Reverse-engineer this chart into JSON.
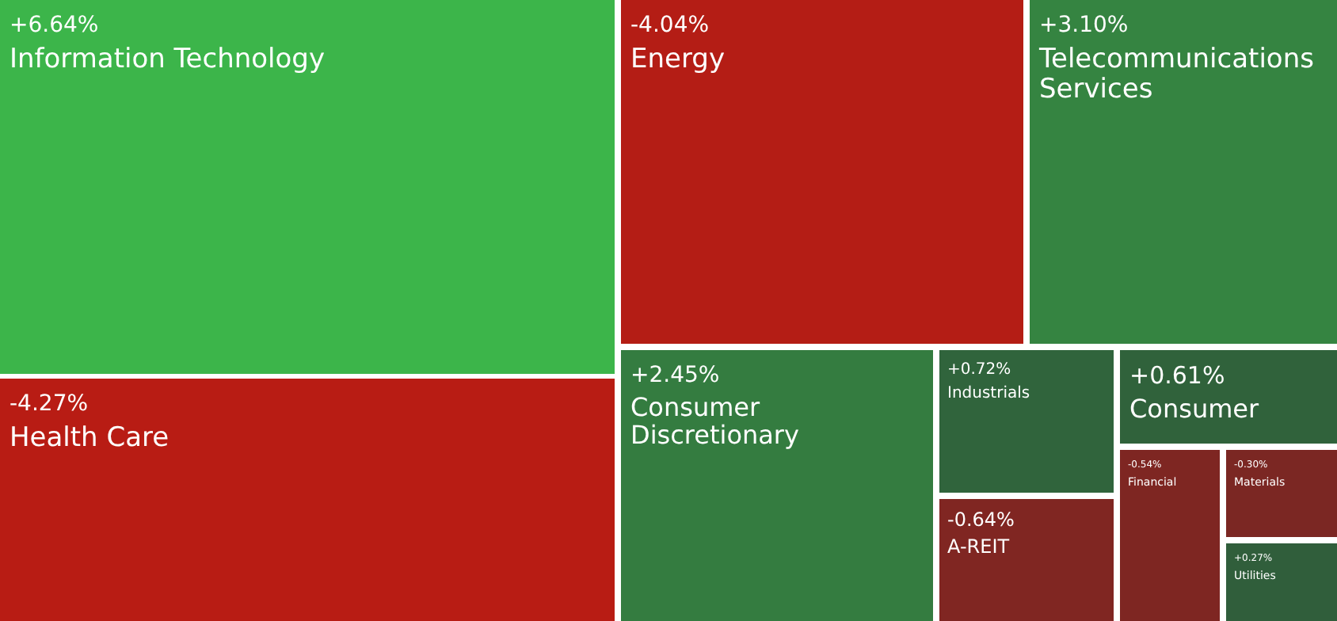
{
  "chart_data": {
    "type": "other",
    "categories": [
      "Information Technology",
      "Health Care",
      "Energy",
      "Telecommunications Services",
      "Consumer Discretionary",
      "Industrials",
      "A-REIT",
      "Consumer",
      "Financial",
      "Materials",
      "Utilities"
    ],
    "values": [
      6.64,
      -4.27,
      -4.04,
      3.1,
      2.45,
      0.72,
      -0.64,
      0.61,
      -0.54,
      -0.3,
      0.27
    ],
    "value_labels": [
      "+6.64%",
      "-4.27%",
      "-4.04%",
      "+3.10%",
      "+2.45%",
      "+0.72%",
      "-0.64%",
      "+0.61%",
      "-0.54%",
      "-0.30%",
      "+0.27%"
    ]
  }
}
